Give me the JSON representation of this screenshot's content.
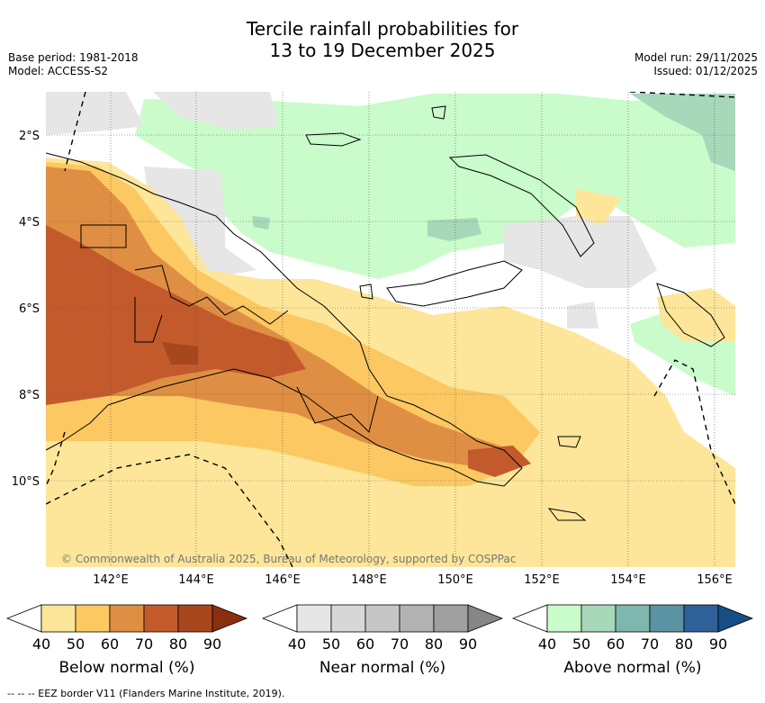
{
  "header": {
    "title_line1": "Tercile rainfall probabilities for",
    "title_line2": "13 to 19 December 2025",
    "base_period": "Base period: 1981-2018",
    "model": "Model: ACCESS-S2",
    "model_run": "Model run: 29/11/2025",
    "issued": "Issued: 01/12/2025"
  },
  "map": {
    "lat_labels": [
      "2°S",
      "4°S",
      "6°S",
      "8°S",
      "10°S"
    ],
    "lon_labels": [
      "142°E",
      "144°E",
      "146°E",
      "148°E",
      "150°E",
      "152°E",
      "154°E",
      "156°E"
    ],
    "copyright": "© Commonwealth of Australia 2025, Bureau of Meteorology, supported by COSPPac"
  },
  "colorbars": [
    {
      "title": "Below normal (%)",
      "ticks": [
        "40",
        "50",
        "60",
        "70",
        "80",
        "90"
      ],
      "colors": [
        "#ffffff",
        "#fde699",
        "#fbc862",
        "#df8f43",
        "#c35a2c",
        "#a8461e",
        "#8a2f10"
      ]
    },
    {
      "title": "Near normal (%)",
      "ticks": [
        "40",
        "50",
        "60",
        "70",
        "80",
        "90"
      ],
      "colors": [
        "#ffffff",
        "#e6e6e6",
        "#d7d7d7",
        "#c6c6c6",
        "#b2b2b2",
        "#a0a0a0",
        "#868686"
      ]
    },
    {
      "title": "Above normal (%)",
      "ticks": [
        "40",
        "50",
        "60",
        "70",
        "80",
        "90"
      ],
      "colors": [
        "#ffffff",
        "#c9fcca",
        "#a6d8b9",
        "#7fb6ad",
        "#5a93a1",
        "#2f6097",
        "#164e86"
      ]
    }
  ],
  "footer": "--  --  -- EEZ border V11 (Flanders Marine Institute, 2019)."
}
